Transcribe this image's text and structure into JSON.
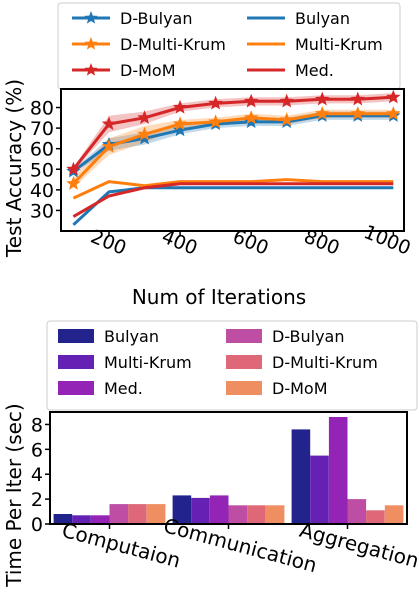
{
  "chart_data": [
    {
      "type": "line",
      "ylabel": "Test Accuracy (%)",
      "xlabel": "Num of Iterations",
      "x": [
        100,
        200,
        300,
        400,
        500,
        600,
        700,
        800,
        900,
        1000
      ],
      "xticks": [
        200,
        400,
        600,
        800,
        1000
      ],
      "yticks": [
        30,
        40,
        50,
        60,
        70,
        80
      ],
      "xlim": [
        65,
        1030
      ],
      "ylim": [
        20,
        89
      ],
      "grid": false,
      "legend_position": "top",
      "series": [
        {
          "name": "D-Bulyan",
          "marker": "star",
          "color": "#1f77b4",
          "values": [
            49,
            62,
            65,
            69,
            72,
            73,
            73,
            76,
            76,
            76
          ],
          "band": [
            [
              48,
              50
            ],
            [
              59,
              65
            ],
            [
              62,
              68
            ],
            [
              67,
              71
            ],
            [
              70,
              74
            ],
            [
              71,
              75
            ],
            [
              71,
              75
            ],
            [
              74,
              78
            ],
            [
              74,
              78
            ],
            [
              74,
              78
            ]
          ]
        },
        {
          "name": "D-Multi-Krum",
          "marker": "star",
          "color": "#ff7f0e",
          "values": [
            43,
            61,
            67,
            72,
            73,
            75,
            74,
            77,
            77,
            77
          ],
          "band": [
            [
              41,
              46
            ],
            [
              57,
              65
            ],
            [
              63,
              71
            ],
            [
              70,
              74
            ],
            [
              71,
              75
            ],
            [
              73,
              77
            ],
            [
              72,
              76
            ],
            [
              75,
              79
            ],
            [
              75,
              79
            ],
            [
              75,
              79
            ]
          ]
        },
        {
          "name": "D-MoM",
          "marker": "star",
          "color": "#d62728",
          "values": [
            50,
            72,
            75,
            80,
            82,
            83,
            83,
            84,
            84,
            85
          ],
          "band": [
            [
              49,
              51
            ],
            [
              68,
              76
            ],
            [
              72,
              78
            ],
            [
              78,
              82
            ],
            [
              80,
              84
            ],
            [
              81,
              85
            ],
            [
              81,
              85
            ],
            [
              82,
              86
            ],
            [
              82,
              86
            ],
            [
              83,
              87
            ]
          ]
        },
        {
          "name": "Bulyan",
          "marker": "none",
          "color": "#1f77b4",
          "values": [
            23,
            39,
            41,
            41,
            41,
            41,
            41,
            41,
            41,
            41
          ]
        },
        {
          "name": "Multi-Krum",
          "marker": "none",
          "color": "#ff7f0e",
          "values": [
            36,
            44,
            42,
            44,
            44,
            44,
            45,
            44,
            44,
            44
          ]
        },
        {
          "name": "Med.",
          "marker": "none",
          "color": "#d62728",
          "values": [
            27,
            37,
            41,
            43,
            43,
            43,
            43,
            43,
            43,
            43
          ]
        }
      ]
    },
    {
      "type": "bar",
      "ylabel": "Time Per Iter (sec)",
      "categories": [
        "Computaion",
        "Communication",
        "Aggregation"
      ],
      "yticks": [
        0,
        2,
        4,
        6,
        8
      ],
      "ylim": [
        0,
        9
      ],
      "grid": false,
      "legend_position": "top",
      "series": [
        {
          "name": "Bulyan",
          "color": "#23238e",
          "values": [
            0.8,
            2.3,
            7.6
          ]
        },
        {
          "name": "Multi-Krum",
          "color": "#6421b3",
          "values": [
            0.7,
            2.1,
            5.5
          ]
        },
        {
          "name": "Med.",
          "color": "#9324b5",
          "values": [
            0.7,
            2.3,
            8.6
          ]
        },
        {
          "name": "D-Bulyan",
          "color": "#bd4ea3",
          "values": [
            1.6,
            1.5,
            2.0
          ]
        },
        {
          "name": "D-Multi-Krum",
          "color": "#de6878",
          "values": [
            1.6,
            1.5,
            1.1
          ]
        },
        {
          "name": "D-MoM",
          "color": "#ef8e61",
          "values": [
            1.6,
            1.5,
            1.5
          ]
        }
      ]
    }
  ]
}
